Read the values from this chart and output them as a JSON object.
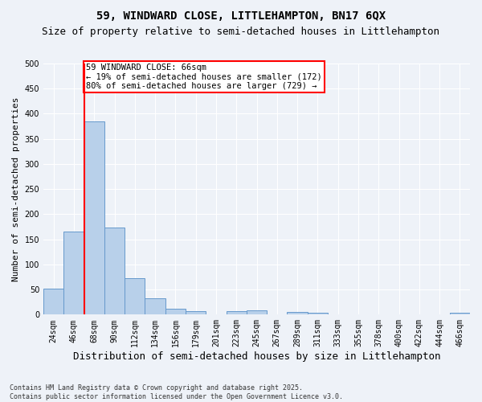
{
  "title1": "59, WINDWARD CLOSE, LITTLEHAMPTON, BN17 6QX",
  "title2": "Size of property relative to semi-detached houses in Littlehampton",
  "xlabel": "Distribution of semi-detached houses by size in Littlehampton",
  "ylabel": "Number of semi-detached properties",
  "categories": [
    "24sqm",
    "46sqm",
    "68sqm",
    "90sqm",
    "112sqm",
    "134sqm",
    "156sqm",
    "179sqm",
    "201sqm",
    "223sqm",
    "245sqm",
    "267sqm",
    "289sqm",
    "311sqm",
    "333sqm",
    "355sqm",
    "378sqm",
    "400sqm",
    "422sqm",
    "444sqm",
    "466sqm"
  ],
  "values": [
    51,
    166,
    385,
    174,
    73,
    33,
    12,
    7,
    0,
    7,
    9,
    0,
    5,
    3,
    0,
    0,
    0,
    0,
    0,
    0,
    3
  ],
  "bar_color": "#b8d0ea",
  "bar_edge_color": "#6699cc",
  "vline_color": "red",
  "vline_x": 1.5,
  "annotation_text": "59 WINDWARD CLOSE: 66sqm\n← 19% of semi-detached houses are smaller (172)\n80% of semi-detached houses are larger (729) →",
  "annotation_box_color": "white",
  "annotation_box_edge_color": "red",
  "footnote": "Contains HM Land Registry data © Crown copyright and database right 2025.\nContains public sector information licensed under the Open Government Licence v3.0.",
  "ylim": [
    0,
    500
  ],
  "yticks": [
    0,
    50,
    100,
    150,
    200,
    250,
    300,
    350,
    400,
    450,
    500
  ],
  "background_color": "#eef2f8",
  "plot_bg_color": "#eef2f8",
  "grid_color": "white",
  "title_fontsize": 10,
  "subtitle_fontsize": 9,
  "ylabel_fontsize": 8,
  "xlabel_fontsize": 9,
  "tick_fontsize": 7,
  "annotation_fontsize": 7.5,
  "footnote_fontsize": 6
}
